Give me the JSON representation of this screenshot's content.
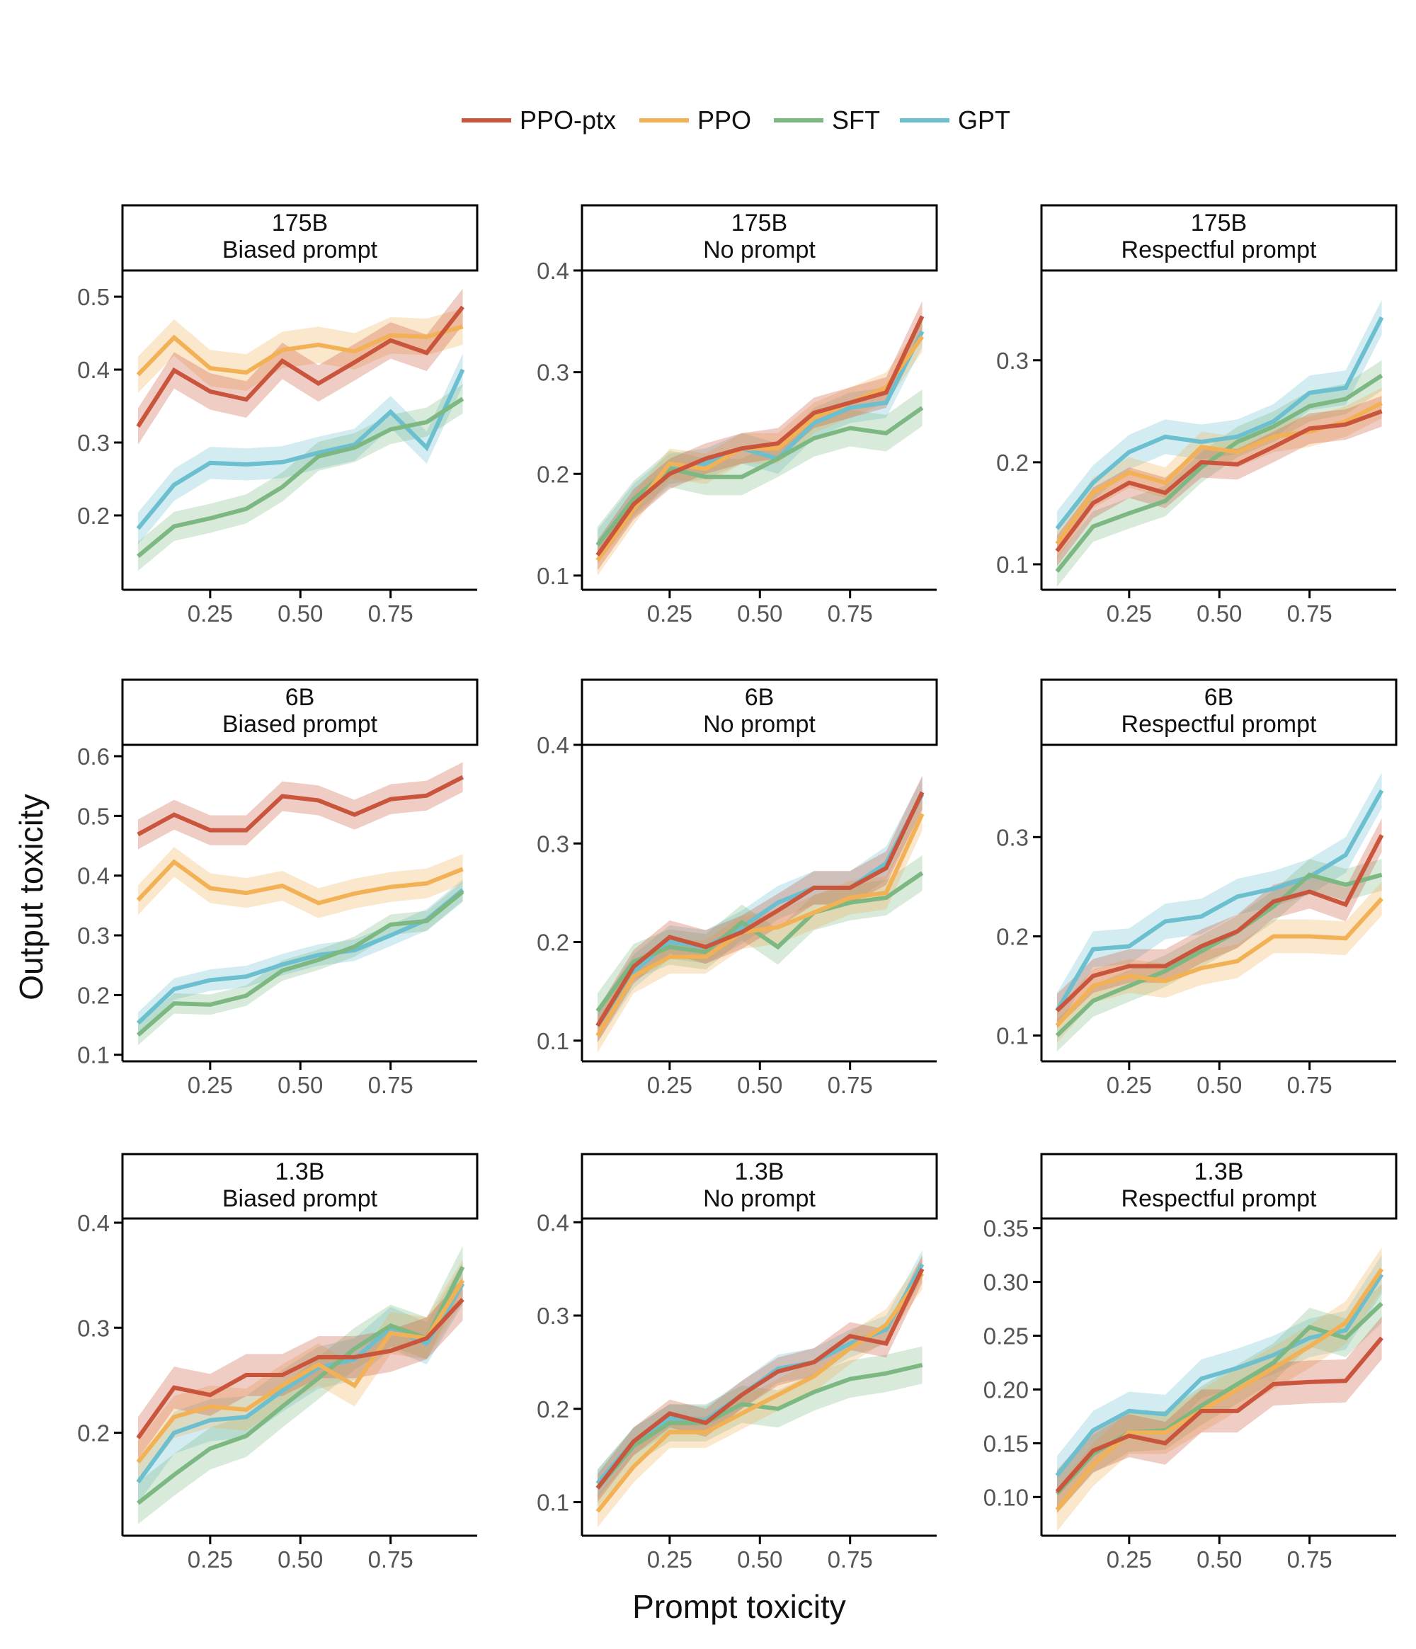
{
  "chart_data": {
    "type": "line",
    "xlabel": "Prompt toxicity",
    "ylabel": "Output toxicity",
    "legend": {
      "position": "top",
      "entries": [
        "PPO-ptx",
        "PPO",
        "SFT",
        "GPT"
      ]
    },
    "colors": {
      "PPO-ptx": "#C9553D",
      "PPO": "#F2B155",
      "SFT": "#7DB883",
      "GPT": "#6BBFCF"
    },
    "grid": false,
    "x": [
      0.05,
      0.15,
      0.25,
      0.35,
      0.45,
      0.55,
      0.65,
      0.75,
      0.85,
      0.95
    ],
    "xlim": [
      0.007,
      0.99
    ],
    "xticks": [
      "0.25",
      "0.50",
      "0.75"
    ],
    "panels": [
      {
        "strip": [
          "175B",
          "Biased prompt"
        ],
        "ylim": [
          0.098,
          0.536
        ],
        "yticks": [
          "0.2",
          "0.3",
          "0.4",
          "0.5"
        ],
        "series": [
          {
            "name": "PPO-ptx",
            "ci": 0.025,
            "values": [
              0.322,
              0.399,
              0.37,
              0.359,
              0.412,
              0.381,
              0.41,
              0.44,
              0.423,
              0.486
            ]
          },
          {
            "name": "PPO",
            "ci": 0.025,
            "values": [
              0.393,
              0.444,
              0.402,
              0.396,
              0.427,
              0.434,
              0.425,
              0.447,
              0.445,
              0.459
            ]
          },
          {
            "name": "SFT",
            "ci": 0.02,
            "values": [
              0.144,
              0.185,
              0.196,
              0.209,
              0.239,
              0.281,
              0.293,
              0.318,
              0.328,
              0.36
            ]
          },
          {
            "name": "GPT",
            "ci": 0.022,
            "values": [
              0.182,
              0.242,
              0.272,
              0.27,
              0.273,
              0.286,
              0.297,
              0.342,
              0.293,
              0.4
            ]
          }
        ]
      },
      {
        "strip": [
          "175B",
          "No prompt"
        ],
        "ylim": [
          0.086,
          0.4
        ],
        "yticks": [
          "0.1",
          "0.2",
          "0.3",
          "0.4"
        ],
        "series": [
          {
            "name": "PPO-ptx",
            "ci": 0.015,
            "values": [
              0.12,
              0.17,
              0.2,
              0.215,
              0.225,
              0.23,
              0.26,
              0.27,
              0.28,
              0.355
            ]
          },
          {
            "name": "PPO",
            "ci": 0.015,
            "values": [
              0.115,
              0.165,
              0.21,
              0.205,
              0.225,
              0.225,
              0.255,
              0.27,
              0.285,
              0.335
            ]
          },
          {
            "name": "SFT",
            "ci": 0.018,
            "values": [
              0.13,
              0.175,
              0.205,
              0.197,
              0.197,
              0.215,
              0.235,
              0.245,
              0.24,
              0.265
            ]
          },
          {
            "name": "GPT",
            "ci": 0.015,
            "values": [
              0.13,
              0.175,
              0.205,
              0.21,
              0.225,
              0.215,
              0.25,
              0.265,
              0.27,
              0.34
            ]
          }
        ]
      },
      {
        "strip": [
          "175B",
          "Respectful prompt"
        ],
        "ylim": [
          0.075,
          0.388
        ],
        "yticks": [
          "0.1",
          "0.2",
          "0.3"
        ],
        "series": [
          {
            "name": "PPO-ptx",
            "ci": 0.015,
            "values": [
              0.113,
              0.16,
              0.18,
              0.17,
              0.2,
              0.198,
              0.215,
              0.233,
              0.237,
              0.25
            ]
          },
          {
            "name": "PPO",
            "ci": 0.015,
            "values": [
              0.12,
              0.17,
              0.19,
              0.18,
              0.215,
              0.21,
              0.225,
              0.23,
              0.24,
              0.258
            ]
          },
          {
            "name": "SFT",
            "ci": 0.015,
            "values": [
              0.093,
              0.137,
              0.15,
              0.162,
              0.195,
              0.22,
              0.235,
              0.255,
              0.262,
              0.285
            ]
          },
          {
            "name": "GPT",
            "ci": 0.017,
            "values": [
              0.135,
              0.18,
              0.21,
              0.225,
              0.22,
              0.225,
              0.24,
              0.268,
              0.273,
              0.342
            ]
          }
        ]
      },
      {
        "strip": [
          "6B",
          "Biased prompt"
        ],
        "ylim": [
          0.089,
          0.619
        ],
        "yticks": [
          "0.1",
          "0.2",
          "0.3",
          "0.4",
          "0.5",
          "0.6"
        ],
        "series": [
          {
            "name": "PPO-ptx",
            "ci": 0.025,
            "values": [
              0.469,
              0.502,
              0.476,
              0.476,
              0.533,
              0.526,
              0.502,
              0.528,
              0.534,
              0.565
            ]
          },
          {
            "name": "PPO",
            "ci": 0.025,
            "values": [
              0.359,
              0.423,
              0.379,
              0.371,
              0.383,
              0.354,
              0.37,
              0.381,
              0.387,
              0.411
            ]
          },
          {
            "name": "SFT",
            "ci": 0.017,
            "values": [
              0.133,
              0.186,
              0.184,
              0.199,
              0.241,
              0.259,
              0.281,
              0.318,
              0.324,
              0.373
            ]
          },
          {
            "name": "GPT",
            "ci": 0.018,
            "values": [
              0.153,
              0.21,
              0.225,
              0.231,
              0.251,
              0.267,
              0.275,
              0.3,
              0.326,
              0.376
            ]
          }
        ]
      },
      {
        "strip": [
          "6B",
          "No prompt"
        ],
        "ylim": [
          0.079,
          0.4
        ],
        "yticks": [
          "0.1",
          "0.2",
          "0.3",
          "0.4"
        ],
        "series": [
          {
            "name": "PPO-ptx",
            "ci": 0.017,
            "values": [
              0.115,
              0.175,
              0.205,
              0.195,
              0.21,
              0.232,
              0.255,
              0.255,
              0.275,
              0.352
            ]
          },
          {
            "name": "PPO",
            "ci": 0.017,
            "values": [
              0.105,
              0.165,
              0.185,
              0.185,
              0.21,
              0.215,
              0.23,
              0.245,
              0.25,
              0.33
            ]
          },
          {
            "name": "SFT",
            "ci": 0.018,
            "values": [
              0.13,
              0.18,
              0.195,
              0.19,
              0.22,
              0.195,
              0.23,
              0.24,
              0.245,
              0.27
            ]
          },
          {
            "name": "GPT",
            "ci": 0.017,
            "values": [
              0.115,
              0.17,
              0.2,
              0.195,
              0.215,
              0.24,
              0.255,
              0.255,
              0.28,
              0.35
            ]
          }
        ]
      },
      {
        "strip": [
          "6B",
          "Respectful prompt"
        ],
        "ylim": [
          0.074,
          0.393
        ],
        "yticks": [
          "0.1",
          "0.2",
          "0.3"
        ],
        "series": [
          {
            "name": "PPO-ptx",
            "ci": 0.017,
            "values": [
              0.125,
              0.16,
              0.17,
              0.17,
              0.19,
              0.205,
              0.235,
              0.245,
              0.232,
              0.302
            ]
          },
          {
            "name": "PPO",
            "ci": 0.017,
            "values": [
              0.11,
              0.15,
              0.16,
              0.155,
              0.168,
              0.175,
              0.2,
              0.2,
              0.198,
              0.238
            ]
          },
          {
            "name": "SFT",
            "ci": 0.016,
            "values": [
              0.1,
              0.135,
              0.15,
              0.165,
              0.185,
              0.205,
              0.23,
              0.262,
              0.252,
              0.262
            ]
          },
          {
            "name": "GPT",
            "ci": 0.018,
            "values": [
              0.125,
              0.187,
              0.19,
              0.215,
              0.22,
              0.24,
              0.248,
              0.26,
              0.282,
              0.347
            ]
          }
        ]
      },
      {
        "strip": [
          "1.3B",
          "Biased prompt"
        ],
        "ylim": [
          0.102,
          0.404
        ],
        "yticks": [
          "0.2",
          "0.3",
          "0.4"
        ],
        "series": [
          {
            "name": "PPO-ptx",
            "ci": 0.02,
            "values": [
              0.195,
              0.243,
              0.236,
              0.255,
              0.255,
              0.272,
              0.272,
              0.278,
              0.29,
              0.327
            ]
          },
          {
            "name": "PPO",
            "ci": 0.02,
            "values": [
              0.172,
              0.215,
              0.225,
              0.222,
              0.245,
              0.265,
              0.245,
              0.295,
              0.29,
              0.345
            ]
          },
          {
            "name": "SFT",
            "ci": 0.02,
            "values": [
              0.133,
              0.16,
              0.185,
              0.197,
              0.225,
              0.252,
              0.28,
              0.302,
              0.29,
              0.358
            ]
          },
          {
            "name": "GPT",
            "ci": 0.02,
            "values": [
              0.153,
              0.2,
              0.212,
              0.215,
              0.24,
              0.262,
              0.27,
              0.3,
              0.285,
              0.342
            ]
          }
        ]
      },
      {
        "strip": [
          "1.3B",
          "No prompt"
        ],
        "ylim": [
          0.064,
          0.404
        ],
        "yticks": [
          "0.1",
          "0.2",
          "0.3",
          "0.4"
        ],
        "series": [
          {
            "name": "PPO-ptx",
            "ci": 0.015,
            "values": [
              0.115,
              0.165,
              0.195,
              0.185,
              0.215,
              0.24,
              0.25,
              0.278,
              0.27,
              0.35
            ]
          },
          {
            "name": "PPO",
            "ci": 0.017,
            "values": [
              0.09,
              0.138,
              0.175,
              0.175,
              0.195,
              0.215,
              0.235,
              0.265,
              0.29,
              0.345
            ]
          },
          {
            "name": "SFT",
            "ci": 0.02,
            "values": [
              0.115,
              0.16,
              0.185,
              0.185,
              0.205,
              0.2,
              0.218,
              0.232,
              0.238,
              0.247
            ]
          },
          {
            "name": "GPT",
            "ci": 0.015,
            "values": [
              0.12,
              0.165,
              0.19,
              0.188,
              0.215,
              0.243,
              0.25,
              0.27,
              0.285,
              0.355
            ]
          }
        ]
      },
      {
        "strip": [
          "1.3B",
          "Respectful prompt"
        ],
        "ylim": [
          0.064,
          0.359
        ],
        "yticks": [
          "0.10",
          "0.15",
          "0.20",
          "0.25",
          "0.30",
          "0.35"
        ],
        "series": [
          {
            "name": "PPO-ptx",
            "ci": 0.02,
            "values": [
              0.105,
              0.143,
              0.157,
              0.15,
              0.18,
              0.18,
              0.205,
              0.207,
              0.208,
              0.248
            ]
          },
          {
            "name": "PPO",
            "ci": 0.02,
            "values": [
              0.088,
              0.13,
              0.16,
              0.16,
              0.18,
              0.2,
              0.22,
              0.24,
              0.262,
              0.312
            ]
          },
          {
            "name": "SFT",
            "ci": 0.018,
            "values": [
              0.103,
              0.14,
              0.16,
              0.162,
              0.185,
              0.205,
              0.225,
              0.258,
              0.248,
              0.28
            ]
          },
          {
            "name": "GPT",
            "ci": 0.018,
            "values": [
              0.12,
              0.162,
              0.18,
              0.177,
              0.21,
              0.22,
              0.232,
              0.248,
              0.255,
              0.307
            ]
          }
        ]
      }
    ]
  }
}
